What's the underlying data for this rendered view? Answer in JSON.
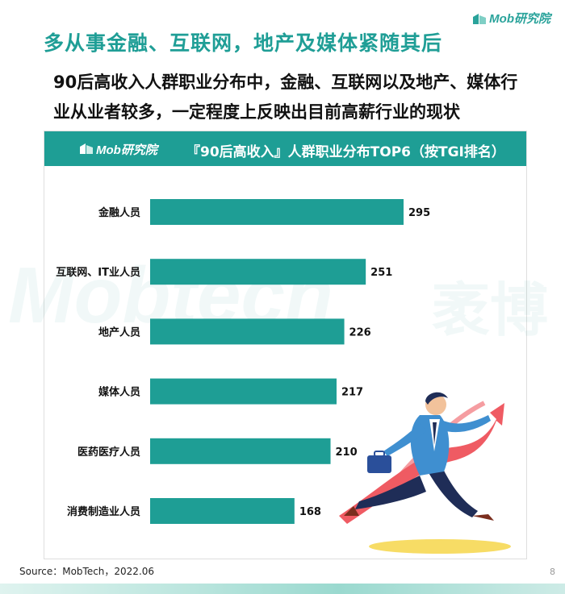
{
  "brand": {
    "logo_text": "Mob研究院",
    "watermark_en": "Mobtech",
    "watermark_cn": "袤博"
  },
  "heading": "多从事金融、互联网，地产及媒体紧随其后",
  "subheading": {
    "line1": "90后高收入人群职业分布中，金融、互联网以及地产、媒体行",
    "line2": "业从业者较多，一定程度上反映出目前高薪行业的现状"
  },
  "panel": {
    "title": "『90后高收入』人群职业分布TOP6（按TGI排名）"
  },
  "chart_data": {
    "type": "bar",
    "orientation": "horizontal",
    "categories": [
      "金融人员",
      "互联网、IT业人员",
      "地产人员",
      "媒体人员",
      "医药医疗人员",
      "消费制造业人员"
    ],
    "values": [
      295,
      251,
      226,
      217,
      210,
      168
    ],
    "bar_color": "#1e9e95",
    "data_labels": true
  },
  "footer": {
    "source": "Source：MobTech，2022.06",
    "page_number": "8"
  }
}
